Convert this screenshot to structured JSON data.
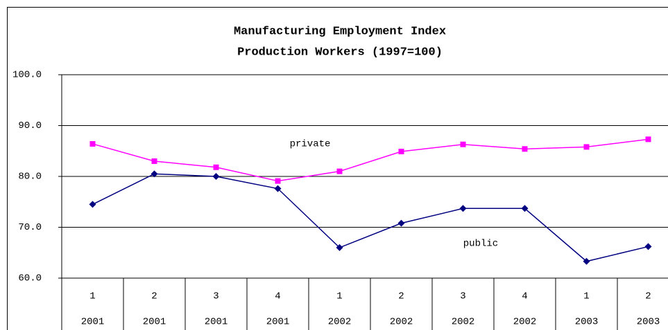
{
  "chart_data": {
    "type": "line",
    "title": "Manufacturing Employment Index",
    "subtitle": "Production Workers (1997=100)",
    "categories": [
      "1",
      "2",
      "3",
      "4",
      "1",
      "2",
      "3",
      "4",
      "1",
      "2"
    ],
    "years": [
      "2001",
      "2001",
      "2001",
      "2001",
      "2002",
      "2002",
      "2002",
      "2002",
      "2003",
      "2003"
    ],
    "series": [
      {
        "name": "private",
        "color": "#ff00ff",
        "marker": "square",
        "values": [
          86.4,
          83.0,
          81.8,
          79.1,
          81.0,
          84.9,
          86.3,
          85.4,
          85.8,
          87.3
        ]
      },
      {
        "name": "public",
        "color": "#000080",
        "marker": "diamond",
        "values": [
          74.5,
          80.5,
          80.0,
          77.6,
          66.0,
          70.8,
          73.7,
          73.7,
          63.3,
          66.2
        ]
      }
    ],
    "ylim": [
      60,
      100
    ],
    "yticks": [
      {
        "value": 60,
        "label": "60.0"
      },
      {
        "value": 70,
        "label": "70.0"
      },
      {
        "value": 80,
        "label": "80.0"
      },
      {
        "value": 90,
        "label": "90.0"
      },
      {
        "value": 100,
        "label": "100.0"
      }
    ],
    "grid": true
  }
}
